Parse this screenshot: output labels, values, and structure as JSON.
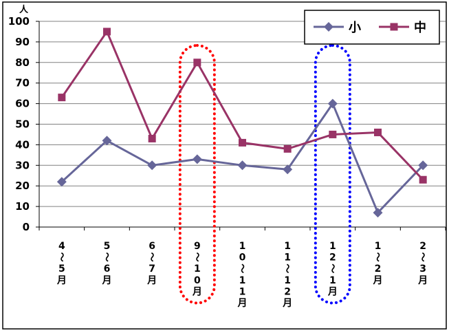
{
  "chart_data": {
    "type": "line",
    "y_unit": "人",
    "ylim": [
      0,
      100
    ],
    "y_ticks": [
      "0",
      "10",
      "20",
      "30",
      "40",
      "50",
      "60",
      "70",
      "80",
      "90",
      "100"
    ],
    "grid": true,
    "legend_position": "top-right",
    "categories": [
      [
        "4",
        "～",
        "5",
        "月"
      ],
      [
        "5",
        "～",
        "6",
        "月"
      ],
      [
        "6",
        "～",
        "7",
        "月"
      ],
      [
        "9",
        "～",
        "1",
        "0",
        "月"
      ],
      [
        "1",
        "0",
        "～",
        "1",
        "1",
        "月"
      ],
      [
        "1",
        "1",
        "～",
        "1",
        "2",
        "月"
      ],
      [
        "1",
        "2",
        "～",
        "1",
        "月"
      ],
      [
        "1",
        "～",
        "2",
        "月"
      ],
      [
        "2",
        "～",
        "3",
        "月"
      ]
    ],
    "series": [
      {
        "name": "小",
        "color": "#666699",
        "marker": "diamond",
        "values": [
          22,
          42,
          30,
          33,
          30,
          28,
          60,
          7,
          30
        ]
      },
      {
        "name": "中",
        "color": "#993366",
        "marker": "square",
        "values": [
          63,
          95,
          43,
          80,
          41,
          38,
          45,
          46,
          23
        ]
      }
    ],
    "highlights": [
      {
        "category_index": 3,
        "color": "#ff0000",
        "style": "dotted"
      },
      {
        "category_index": 6,
        "color": "#0000ff",
        "style": "dotted"
      }
    ]
  }
}
